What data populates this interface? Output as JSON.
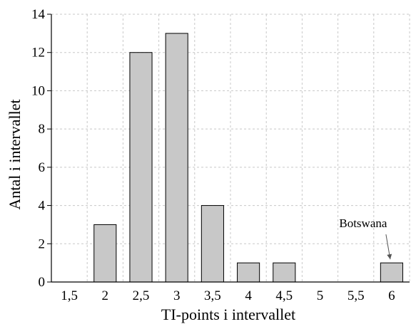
{
  "chart_data": {
    "type": "bar",
    "categories": [
      "1,5",
      "2",
      "2,5",
      "3",
      "3,5",
      "4",
      "4,5",
      "5",
      "5,5",
      "6"
    ],
    "values": [
      0,
      3,
      12,
      13,
      4,
      1,
      1,
      0,
      0,
      1
    ],
    "xlabel": "TI-points i intervallet",
    "ylabel": "Antal i intervallet",
    "ylim": [
      0,
      14
    ],
    "yticks": [
      "0",
      "2",
      "4",
      "6",
      "8",
      "10",
      "12",
      "14"
    ],
    "grid": true,
    "annotations": [
      {
        "text": "Botswana",
        "category": "6"
      }
    ],
    "colors": {
      "bar_fill": "#c8c8c8",
      "bar_stroke": "#000000",
      "grid": "#c8c8c8"
    }
  }
}
